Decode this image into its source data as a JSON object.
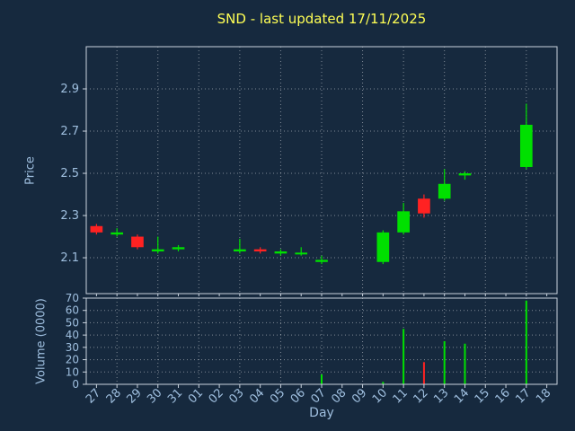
{
  "title": "SND - last updated 17/11/2025",
  "colors": {
    "background": "#16293e",
    "title": "#ffff55",
    "axis_text": "#9fbfdf",
    "axis_line": "#c9d2dd",
    "grid": "rgba(255,255,255,0.45)",
    "up": "#00e000",
    "down": "#ff2222"
  },
  "chart_data": [
    {
      "type": "candlestick",
      "title": "SND - last updated 17/11/2025",
      "xlabel": "Day",
      "ylabel": "Price",
      "x": [
        "27",
        "28",
        "29",
        "30",
        "31",
        "01",
        "02",
        "03",
        "04",
        "05",
        "06",
        "07",
        "08",
        "09",
        "10",
        "11",
        "12",
        "13",
        "14",
        "15",
        "16",
        "17",
        "18"
      ],
      "yticks": [
        2.1,
        2.3,
        2.5,
        2.7,
        2.9
      ],
      "ylim": [
        1.93,
        3.1
      ],
      "grid": "dotted",
      "series": [
        {
          "open": 2.25,
          "high": 2.26,
          "low": 2.21,
          "close": 2.22
        },
        {
          "open": 2.21,
          "high": 2.24,
          "low": 2.2,
          "close": 2.22
        },
        {
          "open": 2.2,
          "high": 2.21,
          "low": 2.14,
          "close": 2.15
        },
        {
          "open": 2.13,
          "high": 2.2,
          "low": 2.12,
          "close": 2.14
        },
        {
          "open": 2.14,
          "high": 2.16,
          "low": 2.13,
          "close": 2.15
        },
        null,
        null,
        {
          "open": 2.13,
          "high": 2.19,
          "low": 2.12,
          "close": 2.14
        },
        {
          "open": 2.14,
          "high": 2.15,
          "low": 2.12,
          "close": 2.13
        },
        {
          "open": 2.12,
          "high": 2.14,
          "low": 2.11,
          "close": 2.13
        },
        {
          "open": 2.12,
          "high": 2.15,
          "low": 2.11,
          "close": 2.12
        },
        {
          "open": 2.08,
          "high": 2.11,
          "low": 2.07,
          "close": 2.09
        },
        null,
        null,
        {
          "open": 2.08,
          "high": 2.23,
          "low": 2.07,
          "close": 2.22
        },
        {
          "open": 2.22,
          "high": 2.36,
          "low": 2.21,
          "close": 2.32
        },
        {
          "open": 2.38,
          "high": 2.4,
          "low": 2.29,
          "close": 2.31
        },
        {
          "open": 2.38,
          "high": 2.52,
          "low": 2.37,
          "close": 2.45
        },
        {
          "open": 2.49,
          "high": 2.51,
          "low": 2.47,
          "close": 2.5
        },
        null,
        null,
        {
          "open": 2.53,
          "high": 2.83,
          "low": 2.52,
          "close": 2.73
        },
        null
      ]
    },
    {
      "type": "bar",
      "ylabel": "Volume (0000)",
      "yticks": [
        0,
        10,
        20,
        30,
        40,
        50,
        60,
        70
      ],
      "ylim": [
        0,
        70
      ],
      "values": [
        0,
        0,
        0,
        0,
        0,
        0,
        0,
        0,
        0,
        0,
        0,
        8,
        0,
        0,
        2,
        45,
        18,
        35,
        33,
        0,
        0,
        68,
        0
      ],
      "bar_colors": [
        "up",
        "up",
        "up",
        "up",
        "up",
        "up",
        "up",
        "up",
        "up",
        "up",
        "up",
        "up",
        "up",
        "up",
        "up",
        "up",
        "down",
        "up",
        "up",
        "up",
        "up",
        "up",
        "up"
      ]
    }
  ]
}
